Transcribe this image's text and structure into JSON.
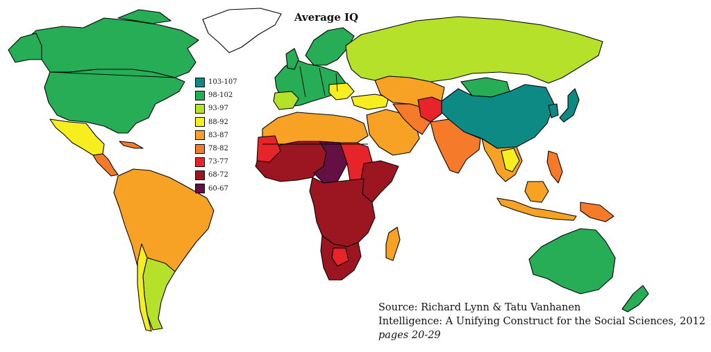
{
  "map": {
    "title": "Average IQ",
    "legend": [
      {
        "label": "103-107",
        "color": "#0e8a84"
      },
      {
        "label": "98-102",
        "color": "#27ad55"
      },
      {
        "label": "93-97",
        "color": "#b5e12b"
      },
      {
        "label": "88-92",
        "color": "#f6ee1e"
      },
      {
        "label": "83-87",
        "color": "#f7a224"
      },
      {
        "label": "78-82",
        "color": "#f57a2a"
      },
      {
        "label": "73-77",
        "color": "#e8242b"
      },
      {
        "label": "68-72",
        "color": "#9b1620"
      },
      {
        "label": "60-67",
        "color": "#651045"
      }
    ],
    "source": {
      "line1": "Source: Richard Lynn & Tatu Vanhanen",
      "line2": "Intelligence: A Unifying Construct for the Social Sciences, 2012",
      "line3": "pages 20-29"
    }
  }
}
